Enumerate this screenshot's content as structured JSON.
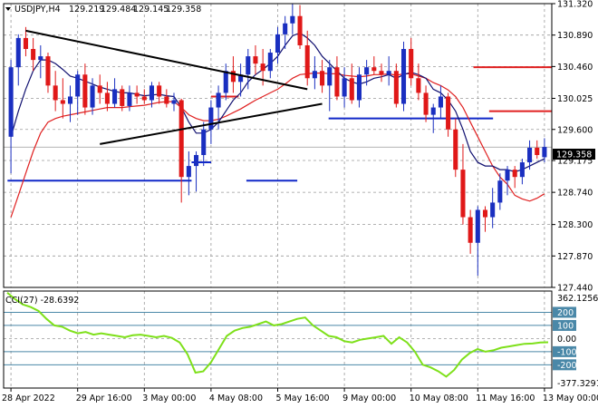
{
  "chart_data": [
    {
      "type": "candlestick",
      "title": "USDJPY,H4",
      "ohlc_readout": [
        "129.219",
        "129.484",
        "129.145",
        "129.358"
      ],
      "current_price": "129.358",
      "y_ticks": [
        "131.320",
        "130.890",
        "130.460",
        "130.025",
        "129.600",
        "129.175",
        "128.740",
        "128.300",
        "127.870",
        "127.440"
      ],
      "ylim": [
        127.44,
        131.32
      ],
      "x_ticks": [
        "28 Apr 2022",
        "29 Apr 16:00",
        "3 May 00:00",
        "4 May 08:00",
        "5 May 16:00",
        "9 May 00:00",
        "10 May 08:00",
        "11 May 16:00",
        "13 May 00:00"
      ],
      "candles": [
        [
          129.5,
          130.55,
          129.0,
          130.45
        ],
        [
          130.45,
          130.9,
          130.2,
          130.85
        ],
        [
          130.85,
          131.0,
          130.6,
          130.7
        ],
        [
          130.7,
          130.85,
          130.4,
          130.55
        ],
        [
          130.55,
          130.75,
          130.3,
          130.6
        ],
        [
          130.6,
          130.65,
          130.1,
          130.2
        ],
        [
          130.2,
          130.4,
          129.85,
          130.0
        ],
        [
          130.0,
          130.3,
          129.75,
          129.95
        ],
        [
          129.95,
          130.2,
          129.7,
          130.05
        ],
        [
          130.05,
          130.4,
          129.8,
          130.35
        ],
        [
          130.35,
          130.5,
          129.8,
          129.9
        ],
        [
          129.9,
          130.3,
          129.8,
          130.2
        ],
        [
          130.2,
          130.35,
          129.95,
          130.1
        ],
        [
          130.1,
          130.25,
          129.85,
          129.95
        ],
        [
          129.95,
          130.3,
          129.9,
          130.15
        ],
        [
          130.15,
          130.2,
          129.85,
          129.92
        ],
        [
          129.92,
          130.2,
          129.85,
          130.1
        ],
        [
          130.1,
          130.2,
          129.95,
          130.05
        ],
        [
          130.05,
          130.15,
          129.95,
          130.0
        ],
        [
          130.0,
          130.25,
          129.9,
          130.2
        ],
        [
          130.2,
          130.25,
          129.95,
          130.05
        ],
        [
          130.05,
          130.15,
          129.9,
          129.95
        ],
        [
          129.95,
          130.1,
          129.85,
          130.0
        ],
        [
          130.0,
          130.02,
          128.6,
          128.95
        ],
        [
          128.95,
          129.3,
          128.7,
          129.1
        ],
        [
          129.1,
          129.3,
          128.75,
          129.25
        ],
        [
          129.25,
          129.7,
          129.1,
          129.6
        ],
        [
          129.6,
          130.0,
          129.4,
          129.9
        ],
        [
          129.9,
          130.2,
          129.6,
          130.1
        ],
        [
          130.1,
          130.5,
          130.0,
          130.4
        ],
        [
          130.4,
          130.6,
          130.1,
          130.25
        ],
        [
          130.25,
          130.5,
          130.05,
          130.35
        ],
        [
          130.35,
          130.7,
          130.15,
          130.6
        ],
        [
          130.6,
          130.75,
          130.35,
          130.5
        ],
        [
          130.5,
          130.7,
          130.2,
          130.4
        ],
        [
          130.4,
          130.7,
          130.3,
          130.65
        ],
        [
          130.65,
          131.0,
          130.5,
          130.9
        ],
        [
          130.9,
          131.15,
          130.7,
          131.05
        ],
        [
          131.05,
          131.35,
          130.9,
          131.15
        ],
        [
          131.15,
          131.3,
          130.7,
          130.75
        ],
        [
          130.75,
          130.95,
          130.2,
          130.3
        ],
        [
          130.3,
          130.6,
          130.15,
          130.4
        ],
        [
          130.4,
          130.55,
          130.1,
          130.2
        ],
        [
          130.2,
          130.55,
          129.85,
          130.45
        ],
        [
          130.45,
          130.6,
          130.0,
          130.05
        ],
        [
          130.05,
          130.45,
          129.9,
          130.3
        ],
        [
          130.3,
          130.5,
          129.95,
          130.0
        ],
        [
          130.0,
          130.45,
          129.9,
          130.35
        ],
        [
          130.35,
          130.55,
          130.2,
          130.45
        ],
        [
          130.45,
          130.6,
          130.35,
          130.4
        ],
        [
          130.4,
          130.5,
          130.25,
          130.35
        ],
        [
          130.35,
          130.6,
          130.2,
          130.4
        ],
        [
          130.4,
          130.5,
          129.9,
          129.95
        ],
        [
          129.95,
          130.8,
          129.85,
          130.7
        ],
        [
          130.7,
          130.85,
          130.2,
          130.3
        ],
        [
          130.3,
          130.5,
          130.0,
          130.1
        ],
        [
          130.1,
          130.2,
          129.7,
          129.8
        ],
        [
          129.8,
          129.95,
          129.55,
          129.9
        ],
        [
          129.9,
          130.2,
          129.75,
          130.05
        ],
        [
          130.05,
          130.1,
          129.5,
          129.6
        ],
        [
          129.6,
          129.75,
          128.95,
          129.05
        ],
        [
          129.05,
          129.4,
          128.3,
          128.4
        ],
        [
          128.4,
          128.5,
          127.9,
          128.05
        ],
        [
          128.05,
          128.55,
          127.6,
          128.5
        ],
        [
          128.5,
          128.55,
          128.2,
          128.4
        ],
        [
          128.4,
          128.8,
          128.25,
          128.6
        ],
        [
          128.6,
          129.0,
          128.5,
          128.9
        ],
        [
          128.9,
          129.1,
          128.7,
          129.05
        ],
        [
          129.05,
          129.1,
          128.8,
          128.95
        ],
        [
          128.95,
          129.2,
          128.85,
          129.15
        ],
        [
          129.15,
          129.45,
          129.05,
          129.35
        ],
        [
          129.35,
          129.45,
          129.2,
          129.25
        ],
        [
          129.22,
          129.48,
          129.15,
          129.36
        ]
      ],
      "ma_fast_blue": [
        129.5,
        129.85,
        130.15,
        130.4,
        130.55,
        130.55,
        130.5,
        130.42,
        130.33,
        130.3,
        130.26,
        130.22,
        130.18,
        130.15,
        130.12,
        130.1,
        130.1,
        130.08,
        130.06,
        130.07,
        130.08,
        130.06,
        130.05,
        129.9,
        129.7,
        129.55,
        129.55,
        129.6,
        129.7,
        129.85,
        130.0,
        130.1,
        130.25,
        130.35,
        130.42,
        130.5,
        130.6,
        130.75,
        130.88,
        130.92,
        130.85,
        130.75,
        130.6,
        130.5,
        130.4,
        130.3,
        130.25,
        130.22,
        130.25,
        130.3,
        130.32,
        130.35,
        130.3,
        130.35,
        130.38,
        130.35,
        130.3,
        130.15,
        130.1,
        130.0,
        129.85,
        129.6,
        129.3,
        129.15,
        129.1,
        129.1,
        129.05,
        129.05,
        129.02,
        129.05,
        129.1,
        129.15,
        129.2
      ],
      "ma_slow_red": [
        128.4,
        128.7,
        129.0,
        129.3,
        129.55,
        129.7,
        129.75,
        129.78,
        129.8,
        129.82,
        129.84,
        129.86,
        129.88,
        129.9,
        129.9,
        129.9,
        129.91,
        129.92,
        129.93,
        129.95,
        129.97,
        129.98,
        129.98,
        129.9,
        129.8,
        129.75,
        129.72,
        129.72,
        129.74,
        129.78,
        129.83,
        129.88,
        129.94,
        130.0,
        130.05,
        130.1,
        130.15,
        130.22,
        130.3,
        130.35,
        130.36,
        130.37,
        130.37,
        130.36,
        130.36,
        130.34,
        130.33,
        130.32,
        130.33,
        130.35,
        130.35,
        130.36,
        130.34,
        130.36,
        130.36,
        130.33,
        130.3,
        130.24,
        130.2,
        130.14,
        130.05,
        129.9,
        129.7,
        129.5,
        129.3,
        129.1,
        128.95,
        128.85,
        128.7,
        128.65,
        128.62,
        128.66,
        128.72
      ],
      "level_blue": [
        {
          "from": 1,
          "to": 48,
          "value": 128.9
        },
        {
          "from": 48,
          "to": 53,
          "value": 129.15
        },
        {
          "from": 62,
          "to": 75,
          "value": 128.9
        },
        {
          "from": 83,
          "to": 125,
          "value": 129.75
        }
      ],
      "level_red": [
        {
          "from": 53,
          "to": 60,
          "value": 130.05
        },
        {
          "from": 120,
          "to": 140,
          "value": 130.45
        },
        {
          "from": 124,
          "to": 140,
          "value": 129.85
        }
      ],
      "triangle_lines": [
        {
          "x1": 2,
          "y1": 130.95,
          "x2": 40,
          "y2": 130.15
        },
        {
          "x1": 12,
          "y1": 129.4,
          "x2": 42,
          "y2": 129.95
        }
      ],
      "indicator": {
        "label": "CCI(27) -28.6392",
        "y_ticks": [
          "362.1256",
          "200",
          "100",
          "0.00",
          "-100",
          "-200",
          "-377.3291"
        ],
        "levels": [
          200,
          100,
          -100,
          -200
        ],
        "ylim": [
          -377.3291,
          362.1256
        ],
        "values": [
          350,
          300,
          260,
          240,
          210,
          150,
          100,
          90,
          60,
          40,
          50,
          30,
          40,
          30,
          20,
          10,
          25,
          30,
          20,
          10,
          20,
          5,
          -30,
          -120,
          -260,
          -250,
          -180,
          -80,
          20,
          60,
          80,
          90,
          110,
          130,
          100,
          110,
          130,
          150,
          160,
          100,
          60,
          20,
          10,
          -20,
          -30,
          -10,
          0,
          10,
          20,
          -40,
          10,
          -30,
          -100,
          -200,
          -220,
          -250,
          -290,
          -240,
          -160,
          -110,
          -80,
          -100,
          -90,
          -70,
          -60,
          -50,
          -40,
          -38,
          -30,
          -28
        ]
      }
    }
  ]
}
